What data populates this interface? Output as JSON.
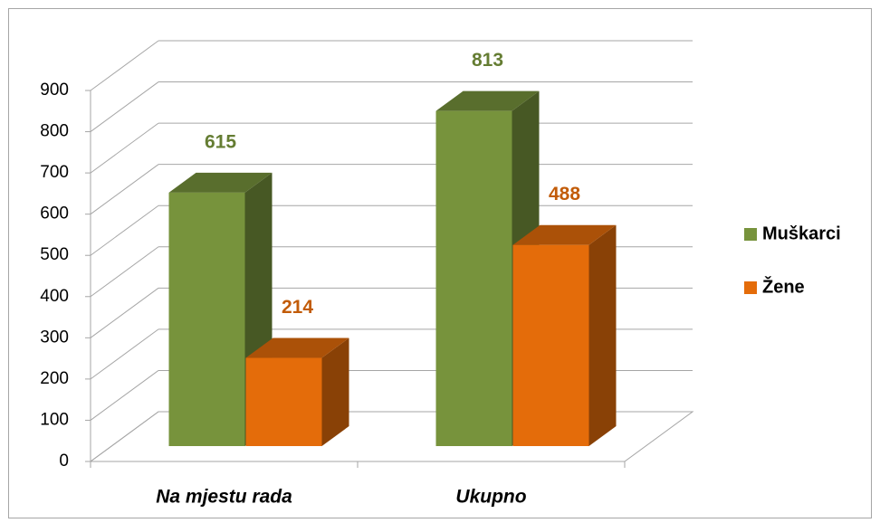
{
  "chart_data": {
    "type": "bar3d",
    "categories": [
      "Na mjestu rada",
      "Ukupno"
    ],
    "series": [
      {
        "name": "Muškarci",
        "color": "#77933c",
        "values": [
          615,
          813
        ]
      },
      {
        "name": "Žene",
        "color": "#e46c0a",
        "values": [
          214,
          488
        ]
      }
    ],
    "ylim": [
      0,
      900
    ],
    "yticks": [
      0,
      100,
      200,
      300,
      400,
      500,
      600,
      700,
      800,
      900
    ],
    "grid": true,
    "legend": "right"
  }
}
